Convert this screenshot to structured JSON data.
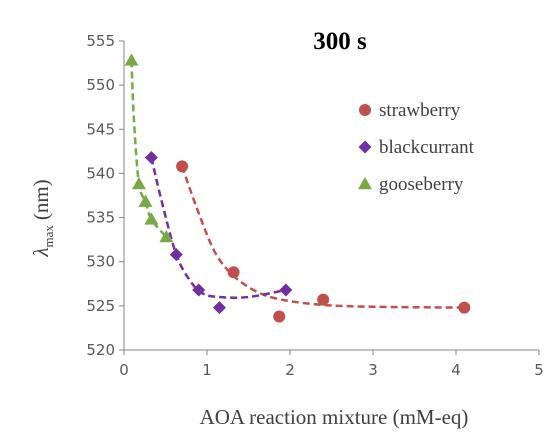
{
  "chart_data": {
    "type": "scatter",
    "title": "300 s",
    "xlabel": "AOA reaction mixture (mM-eq)",
    "ylabel_main": "λ",
    "ylabel_sub": "max",
    "ylabel_unit": "(nm)",
    "xlim": [
      0,
      5
    ],
    "ylim": [
      520,
      555
    ],
    "xticks": [
      "0",
      "1",
      "2",
      "3",
      "4",
      "5"
    ],
    "yticks": [
      "520",
      "525",
      "530",
      "535",
      "540",
      "545",
      "550",
      "555"
    ],
    "legend_position": "right",
    "series": [
      {
        "name": "strawberry",
        "marker": "circle",
        "color": "#c0504d",
        "x": [
          0.7,
          1.32,
          1.87,
          2.4,
          4.1
        ],
        "y": [
          540.8,
          528.8,
          523.8,
          525.7,
          524.8
        ],
        "trend": [
          [
            0.7,
            540.8
          ],
          [
            0.9,
            535.5
          ],
          [
            1.1,
            531.0
          ],
          [
            1.32,
            528.4
          ],
          [
            1.6,
            526.6
          ],
          [
            1.9,
            525.7
          ],
          [
            2.4,
            525.1
          ],
          [
            3.0,
            524.9
          ],
          [
            4.1,
            524.8
          ]
        ]
      },
      {
        "name": "blackcurrant",
        "marker": "diamond",
        "color": "#7030a0",
        "x": [
          0.33,
          0.63,
          0.9,
          1.15,
          1.95
        ],
        "y": [
          541.8,
          530.8,
          526.8,
          524.8,
          526.8
        ],
        "trend": [
          [
            0.33,
            541.8
          ],
          [
            0.45,
            537.0
          ],
          [
            0.63,
            530.8
          ],
          [
            0.8,
            527.8
          ],
          [
            0.95,
            526.4
          ],
          [
            1.15,
            526.0
          ],
          [
            1.5,
            526.0
          ],
          [
            1.95,
            526.8
          ]
        ]
      },
      {
        "name": "gooseberry",
        "marker": "triangle",
        "color": "#77a947",
        "x": [
          0.09,
          0.18,
          0.26,
          0.33,
          0.51
        ],
        "y": [
          552.8,
          538.8,
          536.8,
          534.8,
          532.8
        ],
        "trend": [
          [
            0.09,
            552.8
          ],
          [
            0.12,
            546.0
          ],
          [
            0.18,
            538.8
          ],
          [
            0.26,
            536.8
          ],
          [
            0.33,
            534.8
          ],
          [
            0.51,
            532.8
          ]
        ]
      }
    ]
  }
}
